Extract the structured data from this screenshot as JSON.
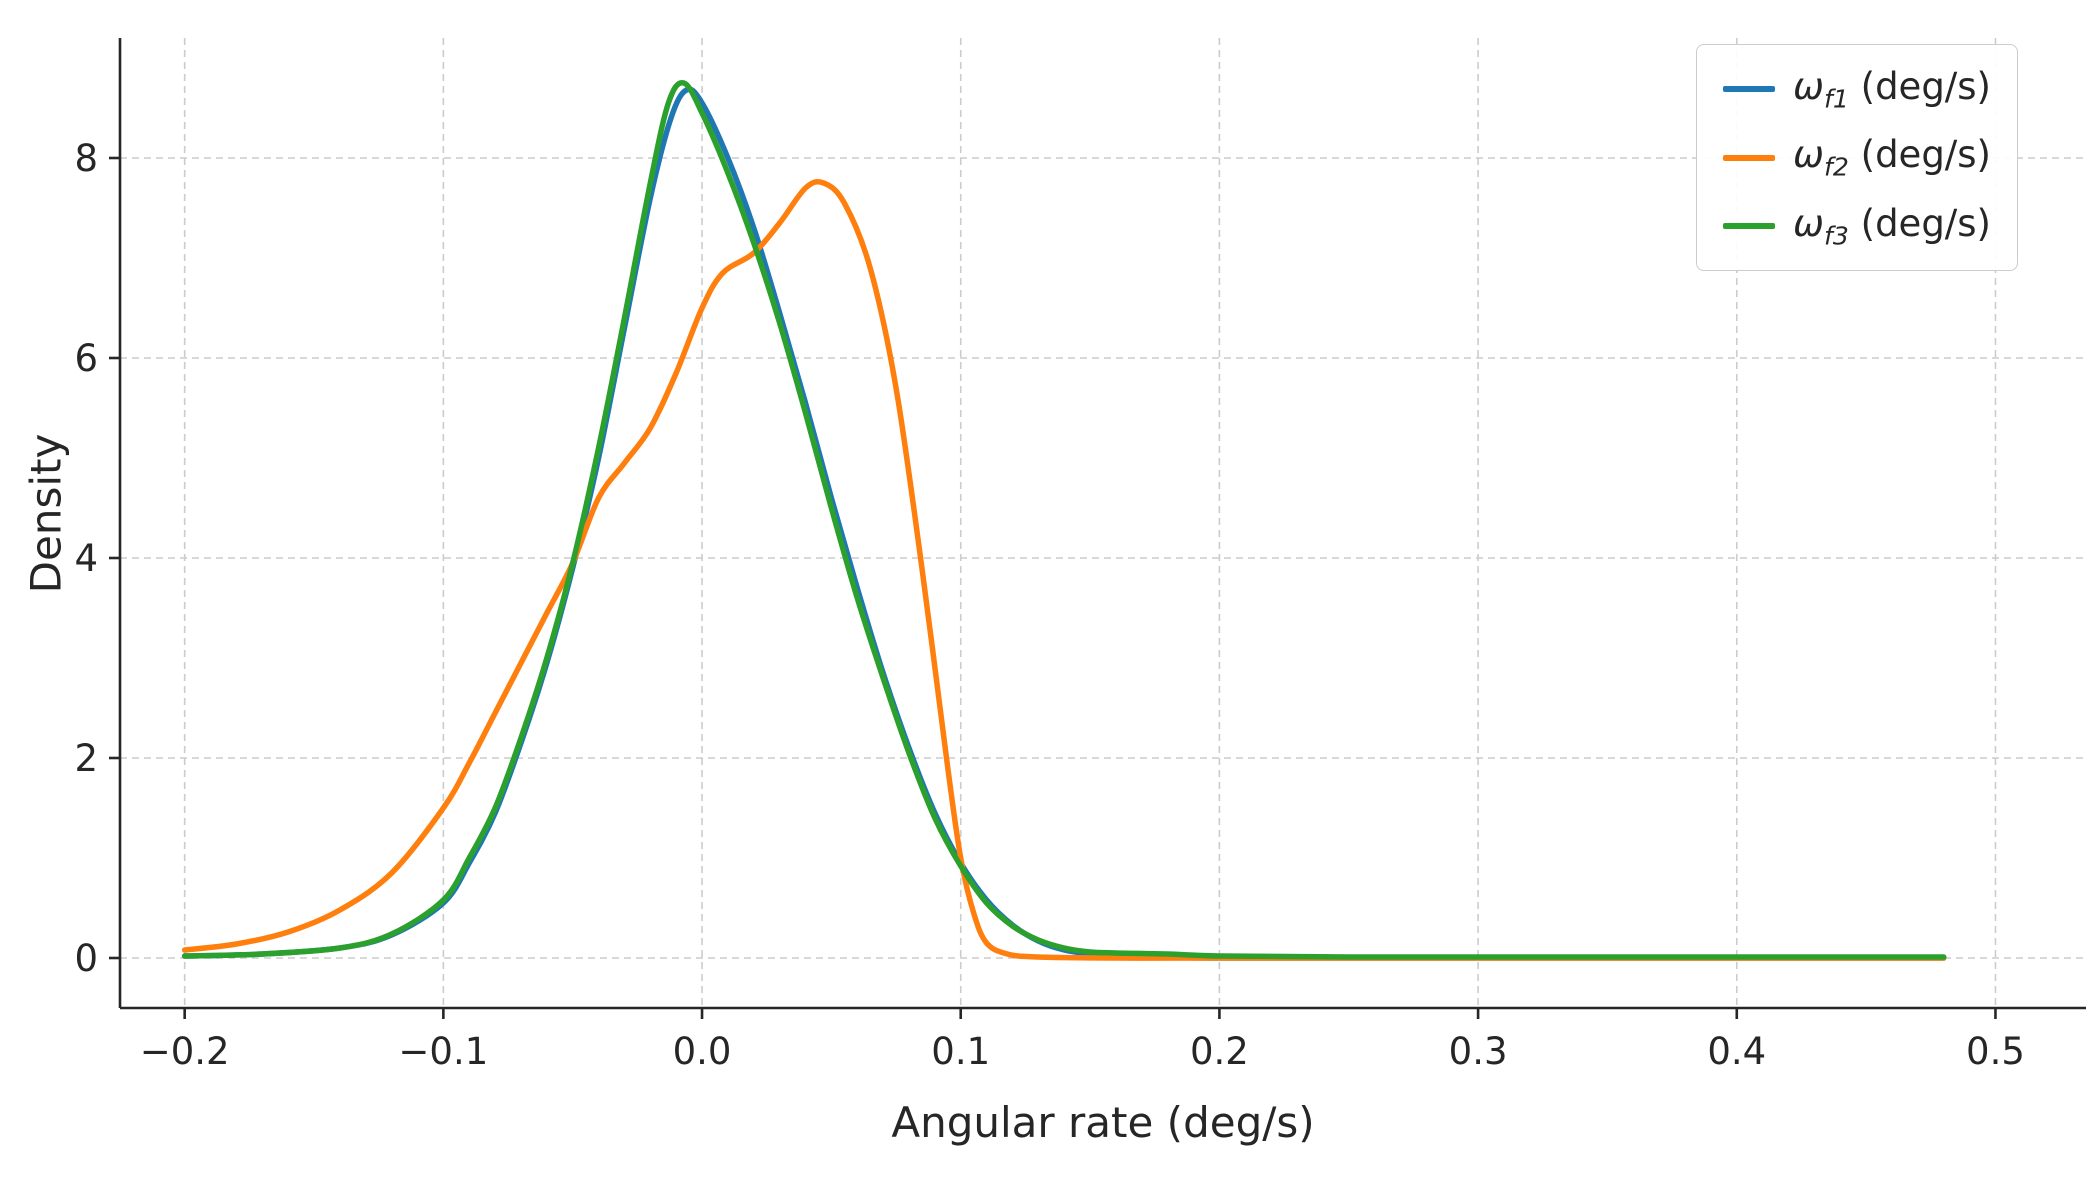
{
  "figure": {
    "background": "#ffffff"
  },
  "chart_data": {
    "type": "line",
    "title": "",
    "xlabel": "Angular rate (deg/s)",
    "ylabel": "Density",
    "xlim": [
      -0.225,
      0.535
    ],
    "ylim": [
      -0.5,
      9.2
    ],
    "x_ticks": [
      -0.2,
      -0.1,
      0.0,
      0.1,
      0.2,
      0.3,
      0.4,
      0.5
    ],
    "x_tick_labels": [
      "−0.2",
      "−0.1",
      "0.0",
      "0.1",
      "0.2",
      "0.3",
      "0.4",
      "0.5"
    ],
    "y_ticks": [
      0,
      2,
      4,
      6,
      8
    ],
    "y_tick_labels": [
      "0",
      "2",
      "4",
      "6",
      "8"
    ],
    "grid": true,
    "grid_color": "#cccccc",
    "axis_color": "#262626",
    "legend_position": "upper right",
    "series": [
      {
        "name": "omega_f1",
        "label": {
          "symbol": "ω",
          "sub": "f1",
          "unit": " (deg/s)"
        },
        "color": "#1f77b4",
        "points": [
          [
            -0.2,
            0.02
          ],
          [
            -0.17,
            0.04
          ],
          [
            -0.14,
            0.1
          ],
          [
            -0.12,
            0.23
          ],
          [
            -0.1,
            0.55
          ],
          [
            -0.09,
            0.95
          ],
          [
            -0.08,
            1.45
          ],
          [
            -0.07,
            2.15
          ],
          [
            -0.06,
            2.95
          ],
          [
            -0.05,
            3.9
          ],
          [
            -0.04,
            5.0
          ],
          [
            -0.03,
            6.3
          ],
          [
            -0.02,
            7.6
          ],
          [
            -0.012,
            8.4
          ],
          [
            -0.006,
            8.68
          ],
          [
            0.0,
            8.55
          ],
          [
            0.01,
            8.0
          ],
          [
            0.02,
            7.3
          ],
          [
            0.03,
            6.45
          ],
          [
            0.04,
            5.55
          ],
          [
            0.05,
            4.6
          ],
          [
            0.06,
            3.7
          ],
          [
            0.07,
            2.85
          ],
          [
            0.08,
            2.1
          ],
          [
            0.09,
            1.45
          ],
          [
            0.1,
            0.95
          ],
          [
            0.11,
            0.58
          ],
          [
            0.12,
            0.33
          ],
          [
            0.13,
            0.17
          ],
          [
            0.14,
            0.08
          ],
          [
            0.15,
            0.04
          ],
          [
            0.16,
            0.02
          ],
          [
            0.18,
            0.01
          ],
          [
            0.2,
            0.0
          ],
          [
            0.3,
            0.0
          ],
          [
            0.48,
            0.0
          ]
        ]
      },
      {
        "name": "omega_f2",
        "label": {
          "symbol": "ω",
          "sub": "f2",
          "unit": " (deg/s)"
        },
        "color": "#ff7f0e",
        "points": [
          [
            -0.2,
            0.08
          ],
          [
            -0.18,
            0.14
          ],
          [
            -0.16,
            0.26
          ],
          [
            -0.14,
            0.48
          ],
          [
            -0.12,
            0.85
          ],
          [
            -0.1,
            1.5
          ],
          [
            -0.09,
            1.95
          ],
          [
            -0.08,
            2.45
          ],
          [
            -0.07,
            2.95
          ],
          [
            -0.06,
            3.45
          ],
          [
            -0.05,
            3.95
          ],
          [
            -0.04,
            4.6
          ],
          [
            -0.03,
            4.95
          ],
          [
            -0.02,
            5.3
          ],
          [
            -0.01,
            5.85
          ],
          [
            0.0,
            6.5
          ],
          [
            0.008,
            6.85
          ],
          [
            0.02,
            7.05
          ],
          [
            0.03,
            7.35
          ],
          [
            0.04,
            7.7
          ],
          [
            0.047,
            7.75
          ],
          [
            0.055,
            7.55
          ],
          [
            0.065,
            6.9
          ],
          [
            0.075,
            5.7
          ],
          [
            0.085,
            3.9
          ],
          [
            0.095,
            1.9
          ],
          [
            0.1,
            1.0
          ],
          [
            0.105,
            0.45
          ],
          [
            0.11,
            0.15
          ],
          [
            0.118,
            0.04
          ],
          [
            0.13,
            0.01
          ],
          [
            0.16,
            0.0
          ],
          [
            0.2,
            0.0
          ],
          [
            0.35,
            0.0
          ],
          [
            0.48,
            0.0
          ]
        ]
      },
      {
        "name": "omega_f3",
        "label": {
          "symbol": "ω",
          "sub": "f3",
          "unit": " (deg/s)"
        },
        "color": "#2ca02c",
        "points": [
          [
            -0.2,
            0.02
          ],
          [
            -0.17,
            0.04
          ],
          [
            -0.14,
            0.1
          ],
          [
            -0.12,
            0.24
          ],
          [
            -0.1,
            0.58
          ],
          [
            -0.09,
            1.0
          ],
          [
            -0.08,
            1.5
          ],
          [
            -0.07,
            2.2
          ],
          [
            -0.06,
            3.0
          ],
          [
            -0.05,
            3.95
          ],
          [
            -0.04,
            5.1
          ],
          [
            -0.03,
            6.4
          ],
          [
            -0.02,
            7.75
          ],
          [
            -0.013,
            8.55
          ],
          [
            -0.007,
            8.75
          ],
          [
            0.0,
            8.45
          ],
          [
            0.01,
            7.85
          ],
          [
            0.02,
            7.15
          ],
          [
            0.03,
            6.35
          ],
          [
            0.04,
            5.45
          ],
          [
            0.05,
            4.5
          ],
          [
            0.06,
            3.6
          ],
          [
            0.07,
            2.8
          ],
          [
            0.08,
            2.05
          ],
          [
            0.09,
            1.4
          ],
          [
            0.1,
            0.92
          ],
          [
            0.11,
            0.55
          ],
          [
            0.12,
            0.32
          ],
          [
            0.13,
            0.18
          ],
          [
            0.14,
            0.1
          ],
          [
            0.15,
            0.06
          ],
          [
            0.16,
            0.05
          ],
          [
            0.18,
            0.04
          ],
          [
            0.2,
            0.02
          ],
          [
            0.25,
            0.01
          ],
          [
            0.35,
            0.01
          ],
          [
            0.48,
            0.01
          ]
        ]
      }
    ]
  }
}
